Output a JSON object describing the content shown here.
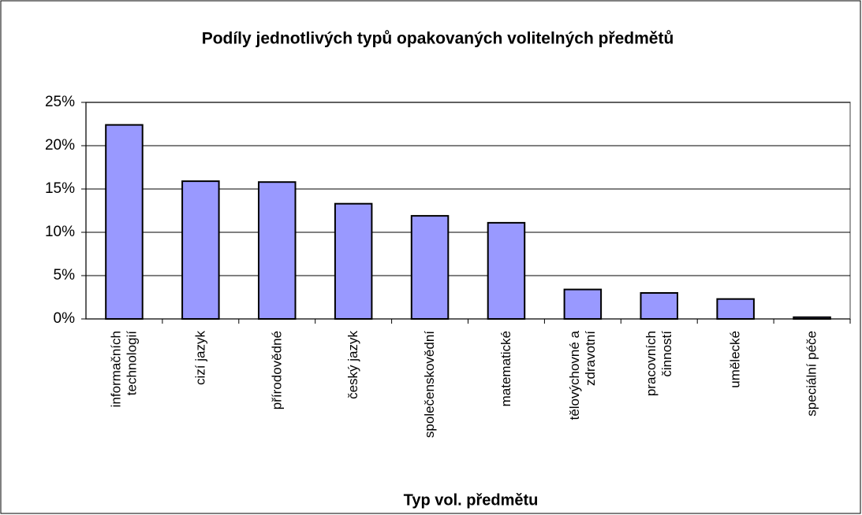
{
  "chart_data": {
    "type": "bar",
    "title": "Podíly jednotlivých typů opakovaných volitelných předmětů",
    "x_label": "Typ vol. předmětu",
    "categories": [
      "informačních technologií",
      "cizí jazyk",
      "přírodovědné",
      "český jazyk",
      "společenskovědní",
      "matematické",
      "tělovýchovné a zdravotní",
      "pracovních činností",
      "umělecké",
      "speciální péče"
    ],
    "values": [
      22.4,
      15.9,
      15.8,
      13.3,
      11.9,
      11.1,
      3.4,
      3.0,
      2.3,
      0.2
    ],
    "color": "#9999ff",
    "ylim": [
      0,
      25
    ],
    "yticks": [
      {
        "value": 0,
        "label": "0%"
      },
      {
        "value": 5,
        "label": "5%"
      },
      {
        "value": 10,
        "label": "10%"
      },
      {
        "value": 15,
        "label": "15%"
      },
      {
        "value": 20,
        "label": "20%"
      },
      {
        "value": 25,
        "label": "25%"
      }
    ],
    "grid": true
  }
}
